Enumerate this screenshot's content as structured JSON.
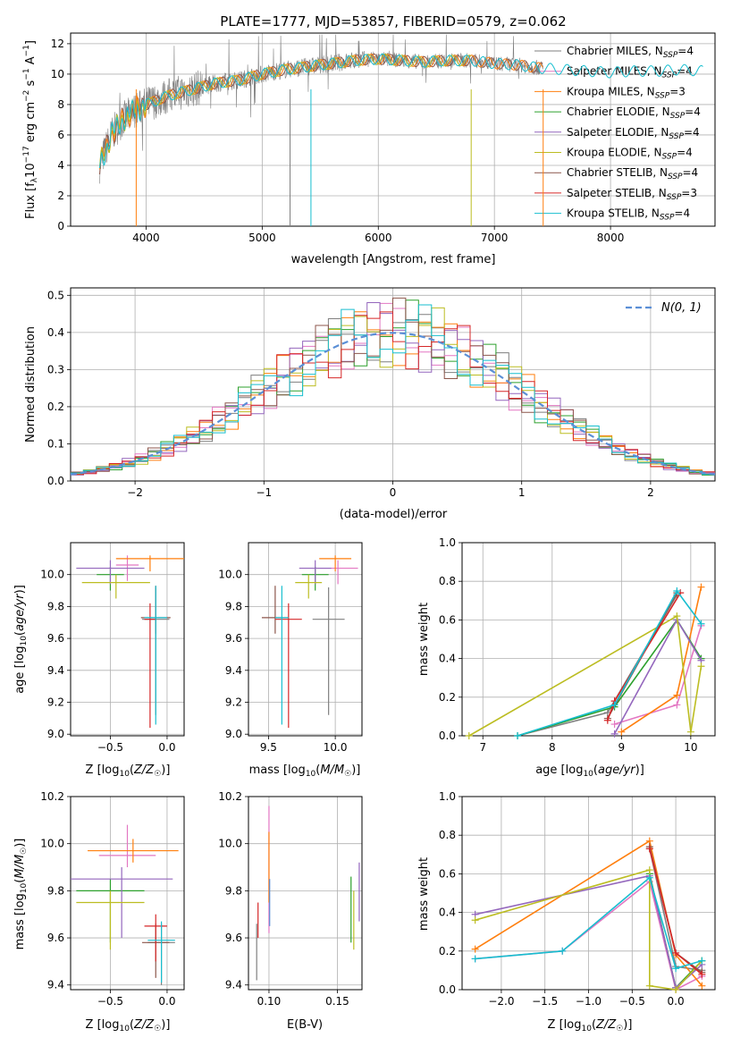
{
  "title": "PLATE=1777, MJD=53857, FIBERID=0579, z=0.062",
  "colors": {
    "chabrier_miles": "#7f7f7f",
    "salpeter_miles": "#e377c2",
    "kroupa_miles": "#ff7f0e",
    "chabrier_elodie": "#2ca02c",
    "salpeter_elodie": "#9467bd",
    "kroupa_elodie": "#bcbd22",
    "chabrier_stelib": "#8c564b",
    "salpeter_stelib": "#d62728",
    "kroupa_stelib": "#17becf",
    "gauss": "#5b8fd6",
    "grid": "#b0b0b0"
  },
  "legend": [
    {
      "base": "Chabrier MILES, N",
      "n": "4",
      "color": "#7f7f7f"
    },
    {
      "base": "Salpeter MILES, N",
      "n": "4",
      "color": "#e377c2"
    },
    {
      "base": "Kroupa MILES, N",
      "n": "3",
      "color": "#ff7f0e"
    },
    {
      "base": "Chabrier ELODIE, N",
      "n": "4",
      "color": "#2ca02c"
    },
    {
      "base": "Salpeter ELODIE, N",
      "n": "4",
      "color": "#9467bd"
    },
    {
      "base": "Kroupa ELODIE, N",
      "n": "4",
      "color": "#bcbd22"
    },
    {
      "base": "Chabrier STELIB, N",
      "n": "4",
      "color": "#8c564b"
    },
    {
      "base": "Salpeter STELIB, N",
      "n": "3",
      "color": "#d62728"
    },
    {
      "base": "Kroupa STELIB, N",
      "n": "4",
      "color": "#17becf"
    }
  ],
  "legend_sub": "SSP",
  "legend_eq": "=",
  "chart_data": [
    {
      "type": "line",
      "name": "spectrum",
      "xlabel": "wavelength [Angstrom, rest frame]",
      "ylabel": "Flux [f_λ 10^-17 erg cm^-2 s^-1 A^-1]",
      "xlim": [
        3350,
        8900
      ],
      "ylim": [
        0,
        12.7
      ],
      "xticks": [
        4000,
        5000,
        6000,
        7000,
        8000
      ],
      "yticks": [
        0,
        2,
        4,
        6,
        8,
        10,
        12
      ],
      "x": [
        3600,
        3700,
        3800,
        3900,
        4000,
        4100,
        4200,
        4300,
        4400,
        4500,
        4600,
        4700,
        4800,
        4900,
        5000,
        5200,
        5400,
        5600,
        5800,
        6000,
        6200,
        6400,
        6600,
        6800,
        7000,
        7200,
        7400,
        7600,
        7800,
        8000,
        8200,
        8400,
        8600,
        8800
      ],
      "y": [
        4.0,
        6.0,
        7.0,
        7.6,
        8.0,
        8.3,
        8.6,
        8.8,
        9.0,
        9.2,
        9.4,
        9.5,
        9.6,
        9.8,
        10.0,
        10.3,
        10.5,
        10.7,
        10.9,
        11.0,
        10.9,
        10.8,
        10.9,
        10.9,
        10.7,
        10.6,
        10.4,
        10.3,
        10.2,
        10.1,
        10.2,
        10.2,
        10.3,
        10.2
      ]
    },
    {
      "type": "line",
      "name": "residual distribution",
      "xlabel": "(data-model)/error",
      "ylabel": "Normed distribution",
      "xlim": [
        -2.5,
        2.5
      ],
      "ylim": [
        0,
        0.52
      ],
      "xticks": [
        -2,
        -1,
        0,
        1,
        2
      ],
      "yticks": [
        0.0,
        0.1,
        0.2,
        0.3,
        0.4,
        0.5
      ],
      "legend_label": "N(0, 1)"
    },
    {
      "type": "scatter",
      "name": "age vs Z",
      "xlabel": "Z [log10(Z/Z☉)]",
      "ylabel": "age [log10(age/yr)]",
      "xlim": [
        -0.85,
        0.15
      ],
      "ylim": [
        8.99,
        10.2
      ],
      "xticks": [
        -0.5,
        0.0
      ],
      "yticks": [
        9.0,
        9.2,
        9.4,
        9.6,
        9.8,
        10.0
      ],
      "points": [
        {
          "x": -0.1,
          "y": 9.72,
          "xerr": 0.12,
          "yerr_lo": 0.6,
          "yerr_hi": 0.2,
          "color": "#7f7f7f"
        },
        {
          "x": -0.35,
          "y": 10.06,
          "xerr": 0.1,
          "yerr_lo": 0.1,
          "yerr_hi": 0.06,
          "color": "#e377c2"
        },
        {
          "x": -0.15,
          "y": 10.1,
          "xerr": 0.3,
          "yerr_lo": 0.08,
          "yerr_hi": 0.02,
          "color": "#ff7f0e"
        },
        {
          "x": -0.5,
          "y": 10.0,
          "xerr": 0.12,
          "yerr_lo": 0.1,
          "yerr_hi": 0.05,
          "color": "#2ca02c"
        },
        {
          "x": -0.5,
          "y": 10.04,
          "xerr": 0.3,
          "yerr_lo": 0.1,
          "yerr_hi": 0.05,
          "color": "#9467bd"
        },
        {
          "x": -0.45,
          "y": 9.95,
          "xerr": 0.3,
          "yerr_lo": 0.1,
          "yerr_hi": 0.05,
          "color": "#bcbd22"
        },
        {
          "x": -0.1,
          "y": 9.73,
          "xerr": 0.13,
          "yerr_lo": 0.1,
          "yerr_hi": 0.2,
          "color": "#8c564b"
        },
        {
          "x": -0.15,
          "y": 9.72,
          "xerr": 0.05,
          "yerr_lo": 0.68,
          "yerr_hi": 0.1,
          "color": "#d62728"
        },
        {
          "x": -0.1,
          "y": 9.73,
          "xerr": 0.1,
          "yerr_lo": 0.67,
          "yerr_hi": 0.2,
          "color": "#17becf"
        }
      ]
    },
    {
      "type": "scatter",
      "name": "age vs mass",
      "xlabel": "mass [log10(M/M☉)]",
      "ylabel": "",
      "xlim": [
        9.35,
        10.2
      ],
      "ylim": [
        8.99,
        10.2
      ],
      "xticks": [
        9.5,
        10.0
      ],
      "yticks": [
        9.0,
        9.2,
        9.4,
        9.6,
        9.8,
        10.0
      ]
    },
    {
      "type": "line",
      "name": "mass weight vs age",
      "xlabel": "age [log10(age/yr)]",
      "ylabel": "mass weight",
      "xlim": [
        6.7,
        10.35
      ],
      "ylim": [
        0,
        1
      ],
      "xticks": [
        7,
        8,
        9,
        10
      ],
      "yticks": [
        0.0,
        0.2,
        0.4,
        0.6,
        0.8,
        1.0
      ]
    },
    {
      "type": "scatter",
      "name": "mass vs Z",
      "xlabel": "Z [log10(Z/Z☉)]",
      "ylabel": "mass [log10(M/M☉)]",
      "xlim": [
        -0.85,
        0.15
      ],
      "ylim": [
        9.38,
        10.2
      ],
      "xticks": [
        -0.5,
        0.0
      ],
      "yticks": [
        9.4,
        9.6,
        9.8,
        10.0,
        10.2
      ]
    },
    {
      "type": "scatter",
      "name": "mass vs E(B-V)",
      "xlabel": "E(B-V)",
      "ylabel": "",
      "xlim": [
        0.085,
        0.168
      ],
      "ylim": [
        9.38,
        10.2
      ],
      "xticks": [
        0.1,
        0.15
      ],
      "yticks": [
        9.4,
        9.6,
        9.8,
        10.0,
        10.2
      ]
    },
    {
      "type": "line",
      "name": "mass weight vs Z",
      "xlabel": "Z [log10(Z/Z☉)]",
      "ylabel": "mass weight",
      "xlim": [
        -2.45,
        0.45
      ],
      "ylim": [
        0,
        1
      ],
      "xticks": [
        -2.0,
        -1.5,
        -1.0,
        -0.5,
        0.0
      ],
      "yticks": [
        0.0,
        0.2,
        0.4,
        0.6,
        0.8,
        1.0
      ]
    }
  ],
  "tick_labels": {
    "p1x": [
      "4000",
      "5000",
      "6000",
      "7000",
      "8000"
    ],
    "p1y": [
      "0",
      "2",
      "4",
      "6",
      "8",
      "10",
      "12"
    ],
    "p2x": [
      "−2",
      "−1",
      "0",
      "1",
      "2"
    ],
    "p2y": [
      "0.0",
      "0.1",
      "0.2",
      "0.3",
      "0.4",
      "0.5"
    ],
    "p3x": [
      "−0.5",
      "0.0"
    ],
    "p3y": [
      "9.0",
      "9.2",
      "9.4",
      "9.6",
      "9.8",
      "10.0"
    ],
    "p4x": [
      "9.5",
      "10.0"
    ],
    "p4y": [
      "9.0",
      "9.2",
      "9.4",
      "9.6",
      "9.8",
      "10.0"
    ],
    "p5x": [
      "7",
      "8",
      "9",
      "10"
    ],
    "p5y": [
      "0.0",
      "0.2",
      "0.4",
      "0.6",
      "0.8",
      "1.0"
    ],
    "p6x": [
      "−0.5",
      "0.0"
    ],
    "p6y": [
      "9.4",
      "9.6",
      "9.8",
      "10.0",
      "10.2"
    ],
    "p7x": [
      "0.10",
      "0.15"
    ],
    "p7y": [
      "9.4",
      "9.6",
      "9.8",
      "10.0",
      "10.2"
    ],
    "p8x": [
      "−2.0",
      "−1.5",
      "−1.0",
      "−0.5",
      "0.0"
    ],
    "p8y": [
      "0.0",
      "0.2",
      "0.4",
      "0.6",
      "0.8",
      "1.0"
    ]
  },
  "labels": {
    "p1_xlabel": "wavelength [Angstrom, rest frame]",
    "p2_xlabel": "(data-model)/error",
    "p2_ylabel": "Normed distribution",
    "p3_xlabel": "Z [log",
    "p4_xlabel": "mass [log",
    "p5_xlabel": "age  [log",
    "p5_ylabel": "mass weight",
    "p6_xlabel": "Z [log",
    "p7_xlabel": "E(B-V)",
    "p8_xlabel": "Z [log",
    "p8_ylabel": "mass weight",
    "gauss_legend": "N(0, 1)"
  }
}
